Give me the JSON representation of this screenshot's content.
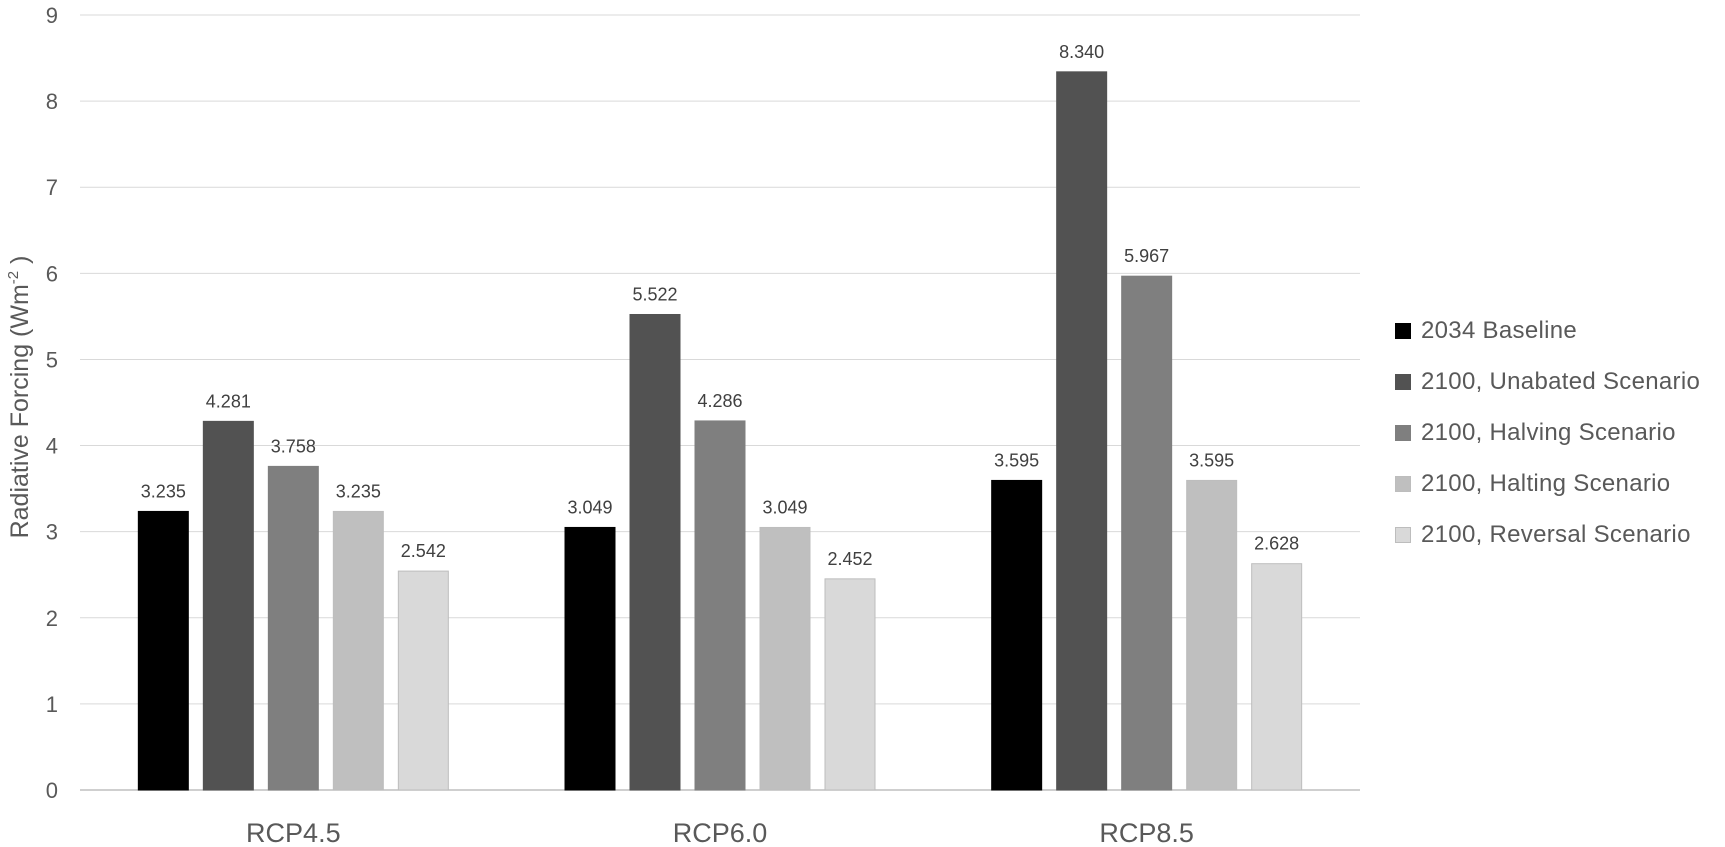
{
  "chart_data": {
    "type": "bar",
    "title": "",
    "xlabel": "",
    "ylabel": "Radiative Forcing (Wm",
    "ylabel_sup": "-2",
    "ylabel_end": " )",
    "ylim": [
      0,
      9
    ],
    "yticks": [
      0,
      1,
      2,
      3,
      4,
      5,
      6,
      7,
      8,
      9
    ],
    "categories": [
      "RCP4.5",
      "RCP6.0",
      "RCP8.5"
    ],
    "series": [
      {
        "name": "2034 Baseline",
        "color": "#000000",
        "values": [
          3.235,
          3.049,
          3.595
        ],
        "labels": [
          "3.235",
          "3.049",
          "3.595"
        ]
      },
      {
        "name": "2100, Unabated Scenario",
        "color": "#525252",
        "values": [
          4.281,
          5.522,
          8.34
        ],
        "labels": [
          "4.281",
          "5.522",
          "8.340"
        ]
      },
      {
        "name": "2100, Halving Scenario",
        "color": "#7f7f7f",
        "values": [
          3.758,
          4.286,
          5.967
        ],
        "labels": [
          "3.758",
          "4.286",
          "5.967"
        ]
      },
      {
        "name": "2100, Halting Scenario",
        "color": "#bfbfbf",
        "values": [
          3.235,
          3.049,
          3.595
        ],
        "labels": [
          "3.235",
          "3.049",
          "3.595"
        ]
      },
      {
        "name": "2100, Reversal Scenario",
        "color": "#d9d9d9",
        "values": [
          2.542,
          2.452,
          2.628
        ],
        "labels": [
          "2.542",
          "2.452",
          "2.628"
        ]
      }
    ],
    "legend_position": "right",
    "grid": true
  }
}
